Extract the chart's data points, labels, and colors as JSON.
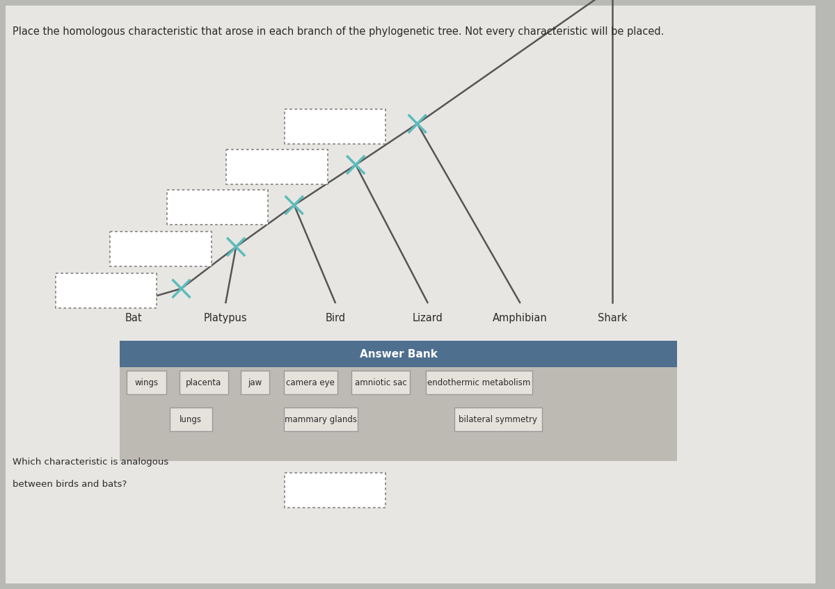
{
  "title": "Place the homologous characteristic that arose in each branch of the phylogenetic tree. Not every characteristic will be placed.",
  "taxa": [
    "Bat",
    "Platypus",
    "Bird",
    "Lizard",
    "Amphibian",
    "Shark"
  ],
  "answer_bank_header": "Answer Bank",
  "answer_bank_row1": [
    "wings",
    "placenta",
    "jaw",
    "camera eye",
    "amniotic sac",
    "endothermic metabolism"
  ],
  "answer_bank_row2": [
    "lungs",
    "mammary glands",
    "bilateral symmetry"
  ],
  "question_line1": "Which characteristic is analogous",
  "question_line2": "between birds and bats?",
  "tree_color": "#555555",
  "cross_color": "#5bbcbc",
  "answer_bank_header_bg": "#4f6f8f",
  "answer_bank_body_bg": "#bdbab4",
  "answer_item_bg": "#e5e2dc",
  "answer_item_border": "#999999",
  "bg_color": "#b8b8b4",
  "paper_bg": "#e8e6e2"
}
